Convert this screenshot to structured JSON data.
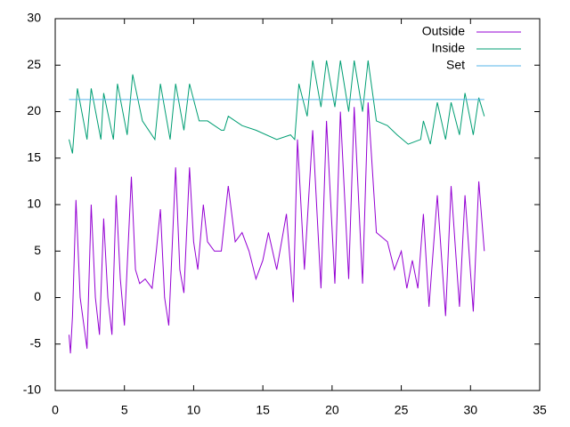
{
  "chart_data": {
    "type": "line",
    "xlim": [
      0,
      35
    ],
    "xticks": [
      0,
      5,
      10,
      15,
      20,
      25,
      30,
      35
    ],
    "ylim": [
      -10,
      30
    ],
    "yticks": [
      -10,
      -5,
      0,
      5,
      10,
      15,
      20,
      25,
      30
    ],
    "legend": "top-right",
    "series": [
      {
        "name": "Outside",
        "color": "#9400d3",
        "x": [
          1,
          1.1,
          1.25,
          1.5,
          1.8,
          2.3,
          2.6,
          2.9,
          3.2,
          3.5,
          3.8,
          4.1,
          4.4,
          4.7,
          5.0,
          5.5,
          5.8,
          6.1,
          6.5,
          7,
          7.3,
          7.6,
          7.9,
          8.2,
          8.7,
          9,
          9.3,
          9.7,
          10,
          10.3,
          10.7,
          11,
          11.5,
          12,
          12.5,
          13,
          13.5,
          14,
          14.5,
          15,
          15.4,
          16,
          16.7,
          17.2,
          17.5,
          18,
          18.6,
          19.2,
          19.6,
          20.2,
          20.6,
          21.2,
          21.6,
          22.2,
          22.6,
          23.2,
          24,
          24.5,
          25,
          25.4,
          25.8,
          26.2,
          26.6,
          27,
          27.6,
          28.2,
          28.6,
          29.2,
          29.6,
          30.2,
          30.6,
          31
        ],
        "values": [
          -4,
          -6,
          -2,
          10.5,
          0,
          -5.5,
          10,
          0,
          -4,
          8.5,
          0,
          -4,
          11,
          2,
          -3,
          13,
          3,
          1.5,
          2,
          1,
          5,
          9.5,
          0,
          -3,
          14,
          3,
          0.5,
          14,
          6,
          3,
          10,
          6,
          5,
          5,
          12,
          6,
          7,
          5,
          2,
          4,
          7,
          3,
          9,
          -0.5,
          17,
          3,
          18,
          1,
          19,
          1.5,
          20,
          2,
          20.5,
          1.5,
          21,
          7,
          6,
          3,
          5,
          1,
          4,
          1,
          9,
          -1,
          11,
          -2,
          12,
          -1,
          11,
          -1.5,
          12.5,
          5
        ]
      },
      {
        "name": "Inside",
        "color": "#009e73",
        "x": [
          1,
          1.25,
          1.6,
          2.3,
          2.6,
          3.3,
          3.5,
          4.2,
          4.5,
          5.2,
          5.6,
          6.3,
          7.2,
          7.6,
          8.3,
          8.7,
          9.3,
          9.7,
          10.4,
          11,
          12,
          12.2,
          12.5,
          13.5,
          14.5,
          16,
          17,
          17.3,
          17.6,
          18.2,
          18.6,
          19.2,
          19.6,
          20.2,
          20.6,
          21.2,
          21.6,
          22.2,
          22.6,
          23.2,
          24,
          24.7,
          25.5,
          26.4,
          26.6,
          27.1,
          27.6,
          28.2,
          28.6,
          29.2,
          29.6,
          30.2,
          30.6,
          31
        ],
        "values": [
          17,
          15.5,
          22.5,
          17,
          22.5,
          17,
          22,
          17,
          23,
          17.5,
          24,
          19,
          17,
          23,
          17,
          23,
          18,
          23,
          19,
          19,
          18,
          18,
          19.5,
          18.5,
          18,
          17,
          17.5,
          17,
          23,
          19.5,
          25.5,
          20.5,
          25.5,
          20.5,
          25.5,
          20,
          25.5,
          20,
          25.5,
          19,
          18.5,
          17.5,
          16.5,
          17,
          19,
          16.5,
          21,
          17,
          21,
          17.5,
          22,
          17.5,
          21.5,
          19.5
        ]
      },
      {
        "name": "Set",
        "color": "#56b4e9",
        "x": [
          1,
          31
        ],
        "values": [
          21.3,
          21.3
        ]
      }
    ]
  }
}
